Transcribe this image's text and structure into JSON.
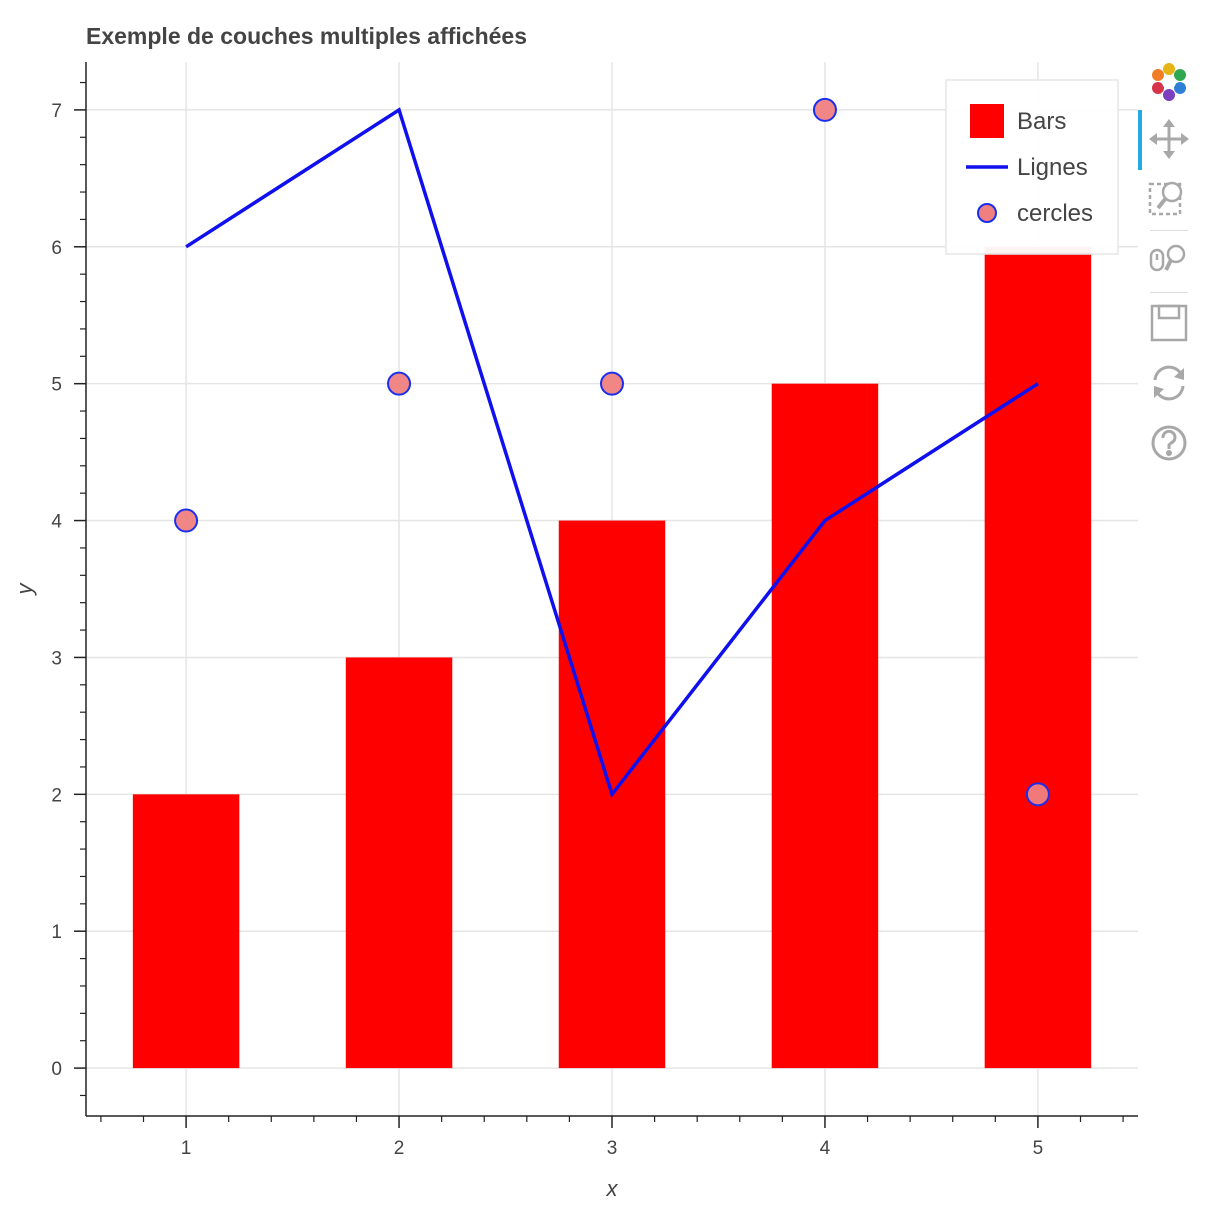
{
  "chart_data": {
    "type": "bar",
    "title": "Exemple de couches multiples affichées",
    "xlabel": "x",
    "ylabel": "y",
    "xlim": [
      0.53,
      5.47
    ],
    "ylim": [
      -0.35,
      7.35
    ],
    "x_ticks": [
      1,
      2,
      3,
      4,
      5
    ],
    "y_ticks": [
      0,
      1,
      2,
      3,
      4,
      5,
      6,
      7
    ],
    "grid": true,
    "legend_position": "top-right",
    "series": [
      {
        "name": "Bars",
        "kind": "bar",
        "color": "#ff0000",
        "bar_width": 0.5,
        "x": [
          1,
          2,
          3,
          4,
          5
        ],
        "y": [
          2,
          3,
          4,
          5,
          6
        ]
      },
      {
        "name": "Lignes",
        "kind": "line",
        "color": "#1010ee",
        "x": [
          1,
          2,
          3,
          4,
          5
        ],
        "y": [
          6,
          7,
          2,
          4,
          5
        ]
      },
      {
        "name": "cercles",
        "kind": "scatter",
        "color": "#1a2fee",
        "fill": "#f08080",
        "x": [
          1,
          2,
          3,
          4,
          5
        ],
        "y": [
          4,
          5,
          5,
          7,
          2
        ]
      }
    ]
  },
  "toolbar": {
    "tools": [
      {
        "name": "bokeh-logo-icon",
        "interactable": true
      },
      {
        "name": "pan-tool-icon",
        "interactable": true,
        "active": true
      },
      {
        "name": "box-zoom-tool-icon",
        "interactable": true
      },
      {
        "name": "wheel-zoom-tool-icon",
        "interactable": true
      },
      {
        "name": "save-tool-icon",
        "interactable": true
      },
      {
        "name": "reset-tool-icon",
        "interactable": true
      },
      {
        "name": "help-tool-icon",
        "interactable": true
      }
    ]
  }
}
